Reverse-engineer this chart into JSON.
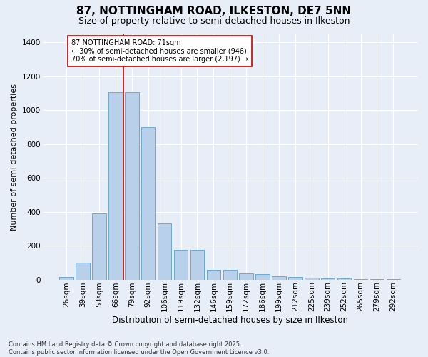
{
  "title": "87, NOTTINGHAM ROAD, ILKESTON, DE7 5NN",
  "subtitle": "Size of property relative to semi-detached houses in Ilkeston",
  "xlabel": "Distribution of semi-detached houses by size in Ilkeston",
  "ylabel": "Number of semi-detached properties",
  "categories": [
    "26sqm",
    "39sqm",
    "53sqm",
    "66sqm",
    "79sqm",
    "92sqm",
    "106sqm",
    "119sqm",
    "132sqm",
    "146sqm",
    "159sqm",
    "172sqm",
    "186sqm",
    "199sqm",
    "212sqm",
    "225sqm",
    "239sqm",
    "252sqm",
    "265sqm",
    "279sqm",
    "292sqm"
  ],
  "values": [
    15,
    100,
    390,
    1105,
    1105,
    900,
    330,
    175,
    175,
    55,
    55,
    35,
    30,
    20,
    15,
    10,
    8,
    5,
    3,
    2,
    1
  ],
  "bar_color": "#b8d0ea",
  "bar_edge_color": "#6aaad4",
  "background_color": "#e8eef8",
  "grid_color": "#ffffff",
  "vline_color": "#cc0000",
  "annotation_text": "87 NOTTINGHAM ROAD: 71sqm\n← 30% of semi-detached houses are smaller (946)\n70% of semi-detached houses are larger (2,197) →",
  "annotation_box_color": "#ffffff",
  "annotation_box_edge": "#cc0000",
  "footnote": "Contains HM Land Registry data © Crown copyright and database right 2025.\nContains public sector information licensed under the Open Government Licence v3.0.",
  "ylim": [
    0,
    1450
  ],
  "title_fontsize": 11,
  "subtitle_fontsize": 9,
  "tick_fontsize": 7.5,
  "ylabel_fontsize": 8,
  "xlabel_fontsize": 8.5,
  "footnote_fontsize": 6,
  "annotation_fontsize": 7
}
